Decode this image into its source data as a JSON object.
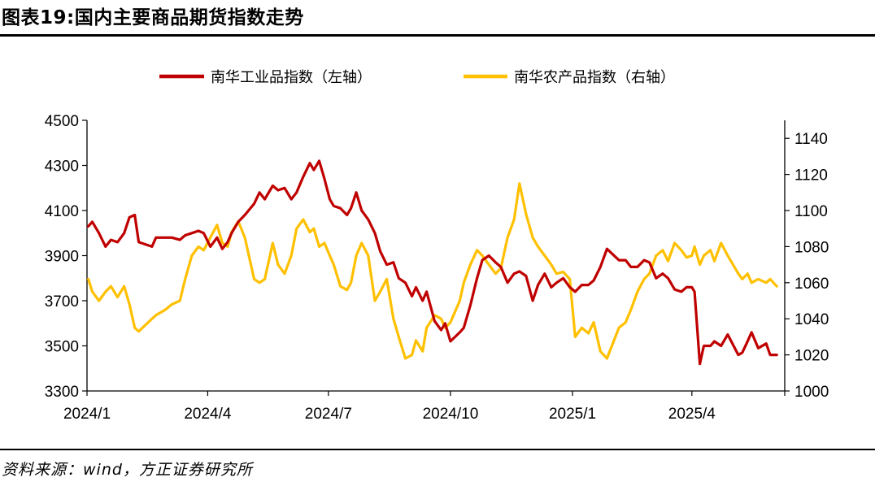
{
  "title": "图表19:国内主要商品期货指数走势",
  "source": "资料来源：wind，方正证券研究所",
  "colors": {
    "industrial": "#C00000",
    "agricultural": "#FFC000",
    "axis": "#000000"
  },
  "chart_data": {
    "type": "line",
    "legend_position": "top-center",
    "grid": false,
    "x_range": [
      "2024/1",
      "2025/6"
    ],
    "x_tick_labels": [
      "2024/1",
      "2024/4",
      "2024/7",
      "2024/10",
      "2025/1",
      "2025/4"
    ],
    "y_left": {
      "range": [
        3300,
        4500
      ],
      "ticks": [
        3300,
        3500,
        3700,
        3900,
        4100,
        4300,
        4500
      ]
    },
    "y_right": {
      "range": [
        1000,
        1150
      ],
      "ticks": [
        1000,
        1020,
        1040,
        1060,
        1080,
        1100,
        1120,
        1140
      ]
    },
    "series": [
      {
        "name": "南华工业品指数（左轴）",
        "axis": "left",
        "color": "#C00000",
        "points": [
          [
            "2024-01-02",
            4030
          ],
          [
            "2024-01-05",
            4050
          ],
          [
            "2024-01-10",
            4000
          ],
          [
            "2024-01-15",
            3940
          ],
          [
            "2024-01-19",
            3970
          ],
          [
            "2024-01-24",
            3960
          ],
          [
            "2024-01-29",
            4000
          ],
          [
            "2024-02-02",
            4070
          ],
          [
            "2024-02-06",
            4080
          ],
          [
            "2024-02-09",
            3960
          ],
          [
            "2024-02-19",
            3940
          ],
          [
            "2024-02-22",
            3980
          ],
          [
            "2024-02-29",
            3980
          ],
          [
            "2024-03-05",
            3980
          ],
          [
            "2024-03-11",
            3970
          ],
          [
            "2024-03-15",
            3990
          ],
          [
            "2024-03-20",
            4000
          ],
          [
            "2024-03-25",
            4010
          ],
          [
            "2024-03-29",
            4000
          ],
          [
            "2024-04-03",
            3940
          ],
          [
            "2024-04-08",
            3980
          ],
          [
            "2024-04-12",
            3930
          ],
          [
            "2024-04-16",
            3960
          ],
          [
            "2024-04-19",
            4000
          ],
          [
            "2024-04-24",
            4050
          ],
          [
            "2024-04-29",
            4080
          ],
          [
            "2024-05-06",
            4130
          ],
          [
            "2024-05-10",
            4180
          ],
          [
            "2024-05-14",
            4150
          ],
          [
            "2024-05-20",
            4210
          ],
          [
            "2024-05-24",
            4190
          ],
          [
            "2024-05-29",
            4200
          ],
          [
            "2024-06-03",
            4150
          ],
          [
            "2024-06-07",
            4180
          ],
          [
            "2024-06-12",
            4250
          ],
          [
            "2024-06-17",
            4310
          ],
          [
            "2024-06-20",
            4280
          ],
          [
            "2024-06-24",
            4320
          ],
          [
            "2024-06-28",
            4240
          ],
          [
            "2024-07-02",
            4150
          ],
          [
            "2024-07-05",
            4120
          ],
          [
            "2024-07-10",
            4110
          ],
          [
            "2024-07-15",
            4080
          ],
          [
            "2024-07-18",
            4110
          ],
          [
            "2024-07-22",
            4180
          ],
          [
            "2024-07-26",
            4100
          ],
          [
            "2024-07-31",
            4060
          ],
          [
            "2024-08-05",
            4000
          ],
          [
            "2024-08-09",
            3920
          ],
          [
            "2024-08-14",
            3860
          ],
          [
            "2024-08-19",
            3870
          ],
          [
            "2024-08-23",
            3800
          ],
          [
            "2024-08-28",
            3780
          ],
          [
            "2024-09-02",
            3720
          ],
          [
            "2024-09-05",
            3760
          ],
          [
            "2024-09-10",
            3700
          ],
          [
            "2024-09-13",
            3740
          ],
          [
            "2024-09-19",
            3610
          ],
          [
            "2024-09-24",
            3570
          ],
          [
            "2024-09-27",
            3600
          ],
          [
            "2024-10-01",
            3520
          ],
          [
            "2024-10-08",
            3560
          ],
          [
            "2024-10-11",
            3580
          ],
          [
            "2024-10-16",
            3680
          ],
          [
            "2024-10-21",
            3800
          ],
          [
            "2024-10-25",
            3880
          ],
          [
            "2024-10-30",
            3900
          ],
          [
            "2024-11-04",
            3870
          ],
          [
            "2024-11-08",
            3850
          ],
          [
            "2024-11-13",
            3780
          ],
          [
            "2024-11-18",
            3820
          ],
          [
            "2024-11-22",
            3830
          ],
          [
            "2024-11-27",
            3810
          ],
          [
            "2024-12-02",
            3700
          ],
          [
            "2024-12-06",
            3770
          ],
          [
            "2024-12-11",
            3820
          ],
          [
            "2024-12-16",
            3760
          ],
          [
            "2024-12-20",
            3780
          ],
          [
            "2024-12-25",
            3800
          ],
          [
            "2024-12-30",
            3760
          ],
          [
            "2025-01-03",
            3740
          ],
          [
            "2025-01-08",
            3770
          ],
          [
            "2025-01-13",
            3770
          ],
          [
            "2025-01-17",
            3790
          ],
          [
            "2025-01-22",
            3850
          ],
          [
            "2025-01-27",
            3930
          ],
          [
            "2025-02-05",
            3880
          ],
          [
            "2025-02-10",
            3880
          ],
          [
            "2025-02-14",
            3850
          ],
          [
            "2025-02-19",
            3850
          ],
          [
            "2025-02-24",
            3880
          ],
          [
            "2025-02-28",
            3870
          ],
          [
            "2025-03-05",
            3800
          ],
          [
            "2025-03-10",
            3820
          ],
          [
            "2025-03-14",
            3800
          ],
          [
            "2025-03-19",
            3750
          ],
          [
            "2025-03-24",
            3740
          ],
          [
            "2025-03-28",
            3760
          ],
          [
            "2025-04-01",
            3760
          ],
          [
            "2025-04-03",
            3740
          ],
          [
            "2025-04-07",
            3420
          ],
          [
            "2025-04-10",
            3500
          ],
          [
            "2025-04-15",
            3500
          ],
          [
            "2025-04-18",
            3520
          ],
          [
            "2025-04-23",
            3500
          ],
          [
            "2025-04-28",
            3550
          ],
          [
            "2025-05-06",
            3460
          ],
          [
            "2025-05-09",
            3470
          ],
          [
            "2025-05-13",
            3520
          ],
          [
            "2025-05-16",
            3560
          ],
          [
            "2025-05-21",
            3490
          ],
          [
            "2025-05-27",
            3510
          ],
          [
            "2025-05-30",
            3460
          ],
          [
            "2025-06-04",
            3460
          ]
        ]
      },
      {
        "name": "南华农产品指数（右轴）",
        "axis": "right",
        "color": "#FFC000",
        "points": [
          [
            "2024-01-02",
            1062
          ],
          [
            "2024-01-05",
            1055
          ],
          [
            "2024-01-10",
            1050
          ],
          [
            "2024-01-15",
            1055
          ],
          [
            "2024-01-19",
            1058
          ],
          [
            "2024-01-24",
            1052
          ],
          [
            "2024-01-29",
            1058
          ],
          [
            "2024-02-02",
            1048
          ],
          [
            "2024-02-06",
            1035
          ],
          [
            "2024-02-09",
            1033
          ],
          [
            "2024-02-19",
            1040
          ],
          [
            "2024-02-22",
            1042
          ],
          [
            "2024-02-29",
            1045
          ],
          [
            "2024-03-05",
            1048
          ],
          [
            "2024-03-11",
            1050
          ],
          [
            "2024-03-15",
            1062
          ],
          [
            "2024-03-20",
            1075
          ],
          [
            "2024-03-25",
            1080
          ],
          [
            "2024-03-29",
            1078
          ],
          [
            "2024-04-03",
            1085
          ],
          [
            "2024-04-08",
            1092
          ],
          [
            "2024-04-12",
            1082
          ],
          [
            "2024-04-16",
            1080
          ],
          [
            "2024-04-19",
            1088
          ],
          [
            "2024-04-24",
            1094
          ],
          [
            "2024-04-29",
            1085
          ],
          [
            "2024-05-06",
            1062
          ],
          [
            "2024-05-10",
            1060
          ],
          [
            "2024-05-14",
            1062
          ],
          [
            "2024-05-20",
            1082
          ],
          [
            "2024-05-24",
            1070
          ],
          [
            "2024-05-29",
            1065
          ],
          [
            "2024-06-03",
            1075
          ],
          [
            "2024-06-07",
            1090
          ],
          [
            "2024-06-12",
            1095
          ],
          [
            "2024-06-17",
            1088
          ],
          [
            "2024-06-20",
            1090
          ],
          [
            "2024-06-24",
            1080
          ],
          [
            "2024-06-28",
            1082
          ],
          [
            "2024-07-02",
            1075
          ],
          [
            "2024-07-05",
            1070
          ],
          [
            "2024-07-10",
            1058
          ],
          [
            "2024-07-15",
            1056
          ],
          [
            "2024-07-18",
            1060
          ],
          [
            "2024-07-22",
            1075
          ],
          [
            "2024-07-26",
            1082
          ],
          [
            "2024-07-31",
            1075
          ],
          [
            "2024-08-05",
            1050
          ],
          [
            "2024-08-09",
            1055
          ],
          [
            "2024-08-14",
            1062
          ],
          [
            "2024-08-19",
            1040
          ],
          [
            "2024-08-23",
            1030
          ],
          [
            "2024-08-28",
            1018
          ],
          [
            "2024-09-02",
            1020
          ],
          [
            "2024-09-05",
            1028
          ],
          [
            "2024-09-10",
            1022
          ],
          [
            "2024-09-13",
            1035
          ],
          [
            "2024-09-19",
            1042
          ],
          [
            "2024-09-24",
            1040
          ],
          [
            "2024-09-27",
            1035
          ],
          [
            "2024-10-01",
            1038
          ],
          [
            "2024-10-08",
            1050
          ],
          [
            "2024-10-11",
            1060
          ],
          [
            "2024-10-16",
            1070
          ],
          [
            "2024-10-21",
            1078
          ],
          [
            "2024-10-25",
            1075
          ],
          [
            "2024-10-30",
            1070
          ],
          [
            "2024-11-04",
            1065
          ],
          [
            "2024-11-08",
            1068
          ],
          [
            "2024-11-13",
            1085
          ],
          [
            "2024-11-18",
            1095
          ],
          [
            "2024-11-22",
            1115
          ],
          [
            "2024-11-27",
            1098
          ],
          [
            "2024-12-02",
            1085
          ],
          [
            "2024-12-06",
            1080
          ],
          [
            "2024-12-11",
            1075
          ],
          [
            "2024-12-16",
            1070
          ],
          [
            "2024-12-20",
            1065
          ],
          [
            "2024-12-25",
            1066
          ],
          [
            "2024-12-30",
            1062
          ],
          [
            "2025-01-03",
            1030
          ],
          [
            "2025-01-08",
            1035
          ],
          [
            "2025-01-13",
            1032
          ],
          [
            "2025-01-17",
            1038
          ],
          [
            "2025-01-22",
            1022
          ],
          [
            "2025-01-27",
            1018
          ],
          [
            "2025-02-05",
            1035
          ],
          [
            "2025-02-10",
            1038
          ],
          [
            "2025-02-14",
            1045
          ],
          [
            "2025-02-19",
            1055
          ],
          [
            "2025-02-24",
            1062
          ],
          [
            "2025-02-28",
            1065
          ],
          [
            "2025-03-05",
            1075
          ],
          [
            "2025-03-10",
            1078
          ],
          [
            "2025-03-14",
            1072
          ],
          [
            "2025-03-19",
            1082
          ],
          [
            "2025-03-24",
            1078
          ],
          [
            "2025-03-28",
            1074
          ],
          [
            "2025-04-01",
            1075
          ],
          [
            "2025-04-03",
            1080
          ],
          [
            "2025-04-07",
            1070
          ],
          [
            "2025-04-10",
            1075
          ],
          [
            "2025-04-15",
            1078
          ],
          [
            "2025-04-18",
            1072
          ],
          [
            "2025-04-23",
            1082
          ],
          [
            "2025-04-28",
            1075
          ],
          [
            "2025-05-06",
            1065
          ],
          [
            "2025-05-09",
            1062
          ],
          [
            "2025-05-13",
            1065
          ],
          [
            "2025-05-16",
            1060
          ],
          [
            "2025-05-21",
            1062
          ],
          [
            "2025-05-27",
            1060
          ],
          [
            "2025-05-30",
            1062
          ],
          [
            "2025-06-04",
            1058
          ]
        ]
      }
    ]
  }
}
